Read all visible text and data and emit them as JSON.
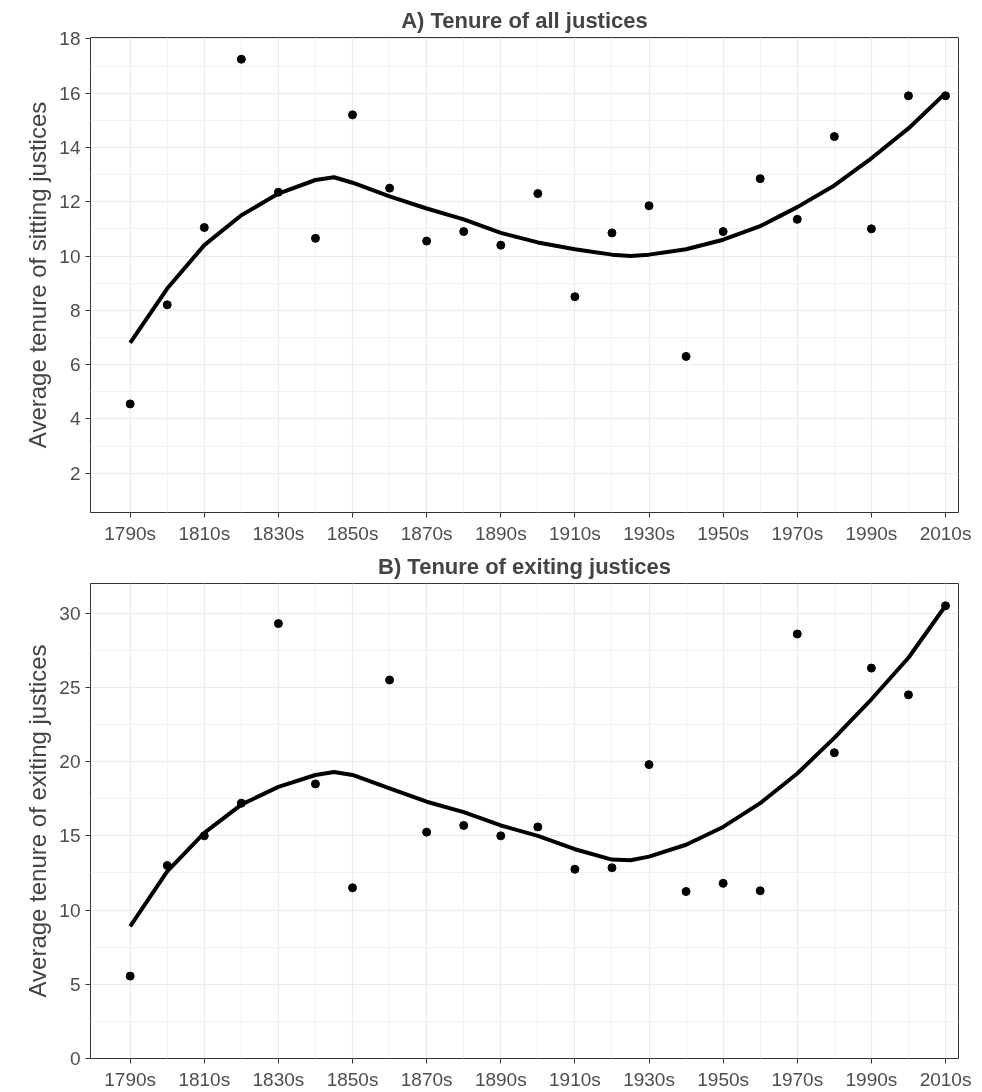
{
  "chart_data": [
    {
      "type": "scatter",
      "title": "A) Tenure of all justices",
      "ylabel": "Average tenure of sitting justices",
      "x": [
        1790,
        1800,
        1810,
        1820,
        1830,
        1840,
        1850,
        1860,
        1870,
        1880,
        1890,
        1900,
        1910,
        1920,
        1930,
        1940,
        1950,
        1960,
        1970,
        1980,
        1990,
        2000,
        2010
      ],
      "series": [
        {
          "color": "#000000",
          "marker": "circle",
          "values": [
            4.55,
            8.2,
            11.05,
            17.25,
            12.35,
            10.65,
            15.2,
            12.5,
            10.55,
            10.9,
            10.4,
            12.3,
            8.5,
            10.85,
            11.85,
            6.3,
            10.9,
            12.85,
            11.35,
            14.4,
            11.0,
            15.9,
            15.9
          ]
        },
        {
          "type": "line",
          "color": "#000000",
          "x": [
            1790,
            1800,
            1810,
            1820,
            1830,
            1840,
            1845,
            1850,
            1860,
            1870,
            1880,
            1890,
            1900,
            1910,
            1920,
            1925,
            1930,
            1940,
            1950,
            1960,
            1970,
            1980,
            1990,
            2000,
            2010
          ],
          "values": [
            6.8,
            8.8,
            10.4,
            11.5,
            12.3,
            12.8,
            12.9,
            12.7,
            12.2,
            11.75,
            11.35,
            10.85,
            10.5,
            10.25,
            10.05,
            10.0,
            10.05,
            10.25,
            10.6,
            11.1,
            11.8,
            12.6,
            13.6,
            14.7,
            16.0
          ]
        }
      ],
      "xlim": [
        1779.3,
        2013.5
      ],
      "ylim": [
        0.55,
        18.05
      ],
      "xticks": [
        {
          "value": 1790,
          "label": "1790s"
        },
        {
          "value": 1810,
          "label": "1810s"
        },
        {
          "value": 1830,
          "label": "1830s"
        },
        {
          "value": 1850,
          "label": "1850s"
        },
        {
          "value": 1870,
          "label": "1870s"
        },
        {
          "value": 1890,
          "label": "1890s"
        },
        {
          "value": 1910,
          "label": "1910s"
        },
        {
          "value": 1930,
          "label": "1930s"
        },
        {
          "value": 1950,
          "label": "1950s"
        },
        {
          "value": 1970,
          "label": "1970s"
        },
        {
          "value": 1990,
          "label": "1990s"
        },
        {
          "value": 2010,
          "label": "2010s"
        }
      ],
      "yticks": [
        2,
        4,
        6,
        8,
        10,
        12,
        14,
        16,
        18
      ],
      "grid": true,
      "line_style": "solid"
    },
    {
      "type": "scatter",
      "title": "B) Tenure of exiting justices",
      "ylabel": "Average tenure of exiting justices",
      "x": [
        1790,
        1800,
        1810,
        1820,
        1830,
        1840,
        1850,
        1860,
        1870,
        1880,
        1890,
        1900,
        1910,
        1920,
        1930,
        1940,
        1950,
        1960,
        1970,
        1980,
        1990,
        2000,
        2010
      ],
      "series": [
        {
          "color": "#000000",
          "marker": "circle",
          "values": [
            5.55,
            13.0,
            15.0,
            17.2,
            29.3,
            18.5,
            11.5,
            25.5,
            15.25,
            15.7,
            15.0,
            15.6,
            12.75,
            12.85,
            19.8,
            11.25,
            11.8,
            11.3,
            28.6,
            20.6,
            26.3,
            24.5,
            30.5
          ]
        },
        {
          "type": "line",
          "color": "#000000",
          "x": [
            1790,
            1800,
            1810,
            1820,
            1830,
            1840,
            1845,
            1850,
            1860,
            1870,
            1880,
            1890,
            1900,
            1910,
            1920,
            1925,
            1930,
            1940,
            1950,
            1960,
            1970,
            1980,
            1990,
            2000,
            2010
          ],
          "values": [
            8.9,
            12.6,
            15.2,
            17.1,
            18.3,
            19.1,
            19.3,
            19.1,
            18.2,
            17.3,
            16.6,
            15.7,
            15.0,
            14.1,
            13.4,
            13.35,
            13.6,
            14.4,
            15.6,
            17.2,
            19.2,
            21.6,
            24.2,
            27.0,
            30.5
          ]
        }
      ],
      "xlim": [
        1779.3,
        2013.5
      ],
      "ylim": [
        0,
        32
      ],
      "xticks": [
        {
          "value": 1790,
          "label": "1790s"
        },
        {
          "value": 1810,
          "label": "1810s"
        },
        {
          "value": 1830,
          "label": "1830s"
        },
        {
          "value": 1850,
          "label": "1850s"
        },
        {
          "value": 1870,
          "label": "1870s"
        },
        {
          "value": 1890,
          "label": "1890s"
        },
        {
          "value": 1910,
          "label": "1910s"
        },
        {
          "value": 1930,
          "label": "1930s"
        },
        {
          "value": 1950,
          "label": "1950s"
        },
        {
          "value": 1970,
          "label": "1970s"
        },
        {
          "value": 1990,
          "label": "1990s"
        },
        {
          "value": 2010,
          "label": "2010s"
        }
      ],
      "yticks": [
        0,
        5,
        10,
        15,
        20,
        25,
        30
      ],
      "grid": true,
      "line_style": "solid"
    }
  ]
}
